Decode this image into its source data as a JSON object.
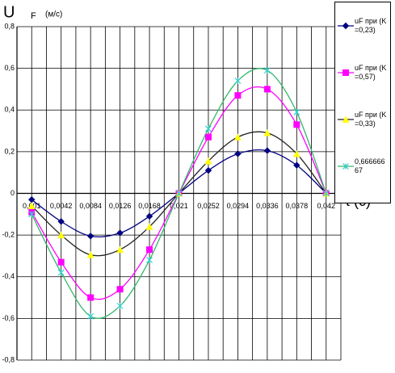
{
  "chart_data": {
    "type": "line",
    "y_label": "U",
    "y_label_subscript": "F",
    "y_unit": "(м/с)",
    "x_label": "t (c)",
    "categories": [
      "0,001",
      "0,0042",
      "0,0084",
      "0,0126",
      "0,0168",
      "0,021",
      "0,0252",
      "0,0294",
      "0,0336",
      "0,0378",
      "0,042"
    ],
    "series": [
      {
        "name": "uF при (K=0,23)",
        "color": "#000080",
        "marker_color": "#000080",
        "marker": "diamond",
        "values": [
          -0.03,
          -0.135,
          -0.205,
          -0.19,
          -0.11,
          0,
          0.11,
          0.19,
          0.205,
          0.135,
          0
        ]
      },
      {
        "name": "uF при (K=0,57)",
        "color": "#ff00ff",
        "marker_color": "#ff00ff",
        "marker": "square",
        "values": [
          -0.09,
          -0.33,
          -0.5,
          -0.46,
          -0.27,
          0,
          0.27,
          0.47,
          0.5,
          0.33,
          0
        ]
      },
      {
        "name": "uF при (K=0,33)",
        "color": "#222222",
        "marker_color": "#ffff00",
        "marker": "triangle",
        "values": [
          -0.06,
          -0.2,
          -0.295,
          -0.27,
          -0.16,
          0,
          0.155,
          0.27,
          0.29,
          0.19,
          0
        ]
      },
      {
        "name": "0,66666667",
        "color": "#33b86a",
        "marker_color": "#33cccc",
        "marker": "cross",
        "values": [
          -0.1,
          -0.38,
          -0.59,
          -0.54,
          -0.32,
          0,
          0.31,
          0.54,
          0.59,
          0.39,
          0
        ]
      }
    ],
    "ylim": [
      -0.8,
      0.8
    ],
    "yticks": [
      {
        "value": -0.8,
        "label": "-0,8"
      },
      {
        "value": -0.6,
        "label": "-0,6"
      },
      {
        "value": -0.4,
        "label": "-0,4"
      },
      {
        "value": -0.2,
        "label": "-0,2"
      },
      0,
      {
        "value": 0.2,
        "label": "0,2"
      },
      {
        "value": 0.4,
        "label": "0,4"
      },
      {
        "value": 0.6,
        "label": "0,6"
      },
      {
        "value": 0.8,
        "label": "0,8"
      }
    ],
    "grid": true
  }
}
